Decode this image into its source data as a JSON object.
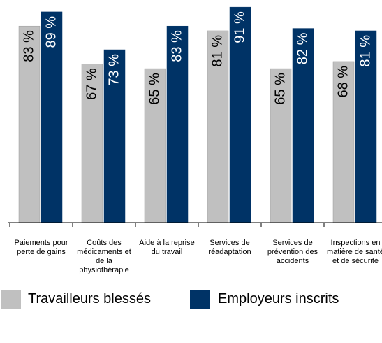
{
  "chart_data": {
    "type": "bar",
    "categories": [
      "Paiements pour perte de gains",
      "Coûts des médicaments et de la physiothérapie",
      "Aide à la reprise du travail",
      "Services de réadaptation",
      "Services de prévention des accidents",
      "Inspections en matière de santé et de sécurité"
    ],
    "series": [
      {
        "name": "Travailleurs blessés",
        "color": "#c0c0c0",
        "values": [
          83,
          67,
          65,
          81,
          65,
          68
        ],
        "value_labels": [
          "83 %",
          "67 %",
          "65 %",
          "81 %",
          "65 %",
          "68 %"
        ]
      },
      {
        "name": "Employeurs inscrits",
        "color": "#003366",
        "values": [
          89,
          73,
          83,
          91,
          82,
          81
        ],
        "value_labels": [
          "89 %",
          "73 %",
          "83 %",
          "91 %",
          "82 %",
          "81 %"
        ]
      }
    ],
    "ylim": [
      0,
      94
    ],
    "legend": "bottom"
  }
}
